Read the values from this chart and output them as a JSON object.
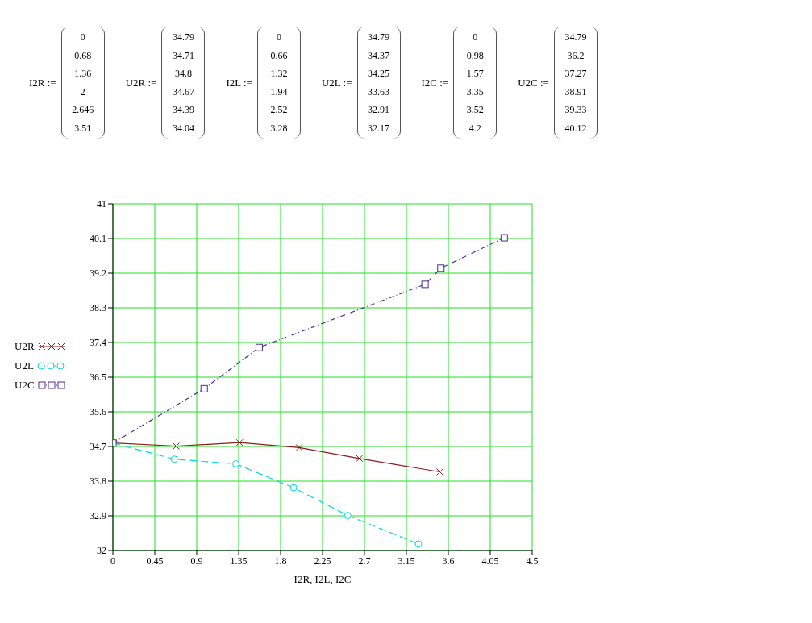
{
  "chart_data": [
    {
      "type": "other",
      "categories": [
        "I2R :=",
        "U2R :=",
        "I2L :=",
        "U2L :=",
        "I2C :=",
        "U2C :="
      ],
      "annotations": [
        "0",
        "0.68",
        "1.36",
        "2",
        "2.646",
        "3.51",
        "34.79",
        "34.71",
        "34.8",
        "34.67",
        "34.39",
        "34.04",
        "0",
        "0.66",
        "1.32",
        "1.94",
        "2.52",
        "3.28",
        "34.79",
        "34.37",
        "34.25",
        "33.63",
        "32.91",
        "32.17",
        "0",
        "0.98",
        "1.57",
        "3.35",
        "3.52",
        "4.2",
        "34.79",
        "36.2",
        "37.27",
        "38.91",
        "39.33",
        "40.12"
      ]
    },
    {
      "type": "line",
      "xlabel": "I2R, I2L, I2C",
      "series": [
        {
          "name": "U2R",
          "color": "#8b1a1a",
          "x": [
            0,
            0.68,
            1.36,
            2,
            2.646,
            3.51
          ],
          "values": [
            34.79,
            34.71,
            34.8,
            34.67,
            34.39,
            34.04
          ],
          "marker": "cross",
          "line_style": "solid"
        },
        {
          "name": "U2L",
          "color": "#00d8e0",
          "x": [
            0,
            0.66,
            1.32,
            1.94,
            2.52,
            3.28
          ],
          "values": [
            34.79,
            34.37,
            34.25,
            33.63,
            32.91,
            32.17
          ],
          "marker": "circle",
          "line_style": "dashed"
        },
        {
          "name": "U2C",
          "color": "#4a2a9a",
          "x": [
            0,
            0.98,
            1.57,
            3.35,
            3.52,
            4.2
          ],
          "values": [
            34.79,
            36.2,
            37.27,
            38.91,
            39.33,
            40.12
          ],
          "marker": "square",
          "line_style": "dotted"
        }
      ],
      "xlim": [
        0,
        4.5
      ],
      "xticks": [
        0,
        0.45,
        0.9,
        1.35,
        1.8,
        2.25,
        2.7,
        3.15,
        3.6,
        4.05,
        4.5
      ],
      "ylim": [
        32,
        41
      ],
      "yticks": [
        32,
        32.9,
        33.8,
        34.7,
        35.6,
        36.5,
        37.4,
        38.3,
        39.2,
        40.1,
        41
      ],
      "grid": true,
      "legend": "left"
    }
  ]
}
